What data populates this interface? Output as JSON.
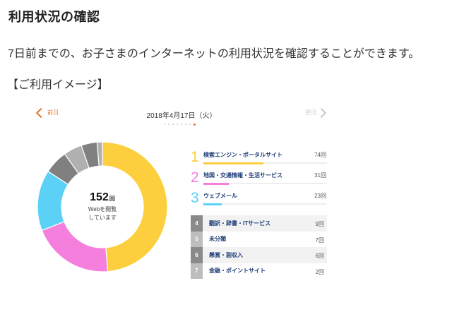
{
  "header": {
    "title": "利用状況の確認",
    "description": "7日前までの、お子さまのインターネットの利用状況を確認することができます。",
    "subtitle": "【ご利用イメージ】"
  },
  "nav": {
    "prev_label": "前日",
    "next_label": "翌日",
    "date": "2018年4月17日（火）",
    "accent_color": "#e2762e",
    "disabled_color": "#c9c9c9",
    "dots_total": 8,
    "dots_active_index": 7
  },
  "summary": {
    "total": "152",
    "unit": "回",
    "caption_line1": "Webを閲覧",
    "caption_line2": "しています"
  },
  "ranking": {
    "top": [
      {
        "rank": "1",
        "label": "検索エンジン・ポータルサイト",
        "count": 74,
        "count_text": "74回",
        "color": "#fdcf3e"
      },
      {
        "rank": "2",
        "label": "地図・交通情報・生活サービス",
        "count": 31,
        "count_text": "31回",
        "color": "#f57fdd"
      },
      {
        "rank": "3",
        "label": "ウェブメール",
        "count": 23,
        "count_text": "23回",
        "color": "#5ad1f5"
      }
    ],
    "others": [
      {
        "rank": "4",
        "label": "翻訳・辞書・ITサービス",
        "count": 9,
        "count_text": "9回",
        "color": "#808080",
        "box_color": "#8a8a8a"
      },
      {
        "rank": "5",
        "label": "未分類",
        "count": 7,
        "count_text": "7回",
        "color": "#b0b0b0",
        "box_color": "#bdbdbd"
      },
      {
        "rank": "6",
        "label": "懸賞・副収入",
        "count": 6,
        "count_text": "6回",
        "color": "#808080",
        "box_color": "#8a8a8a"
      },
      {
        "rank": "7",
        "label": "金融・ポイントサイト",
        "count": 2,
        "count_text": "2回",
        "color": "#b0b0b0",
        "box_color": "#bdbdbd"
      }
    ]
  },
  "chart_data": {
    "type": "pie",
    "variant": "donut",
    "title": "",
    "center_label": "152回 Webを閲覧しています",
    "categories": [
      "検索エンジン・ポータルサイト",
      "地図・交通情報・生活サービス",
      "ウェブメール",
      "翻訳・辞書・ITサービス",
      "未分類",
      "懸賞・副収入",
      "金融・ポイントサイト"
    ],
    "values": [
      74,
      31,
      23,
      9,
      7,
      6,
      2
    ],
    "colors": [
      "#fdcf3e",
      "#f57fdd",
      "#5ad1f5",
      "#808080",
      "#b0b0b0",
      "#808080",
      "#b0b0b0"
    ],
    "total": 152,
    "start_angle_deg": 0,
    "direction": "clockwise"
  }
}
